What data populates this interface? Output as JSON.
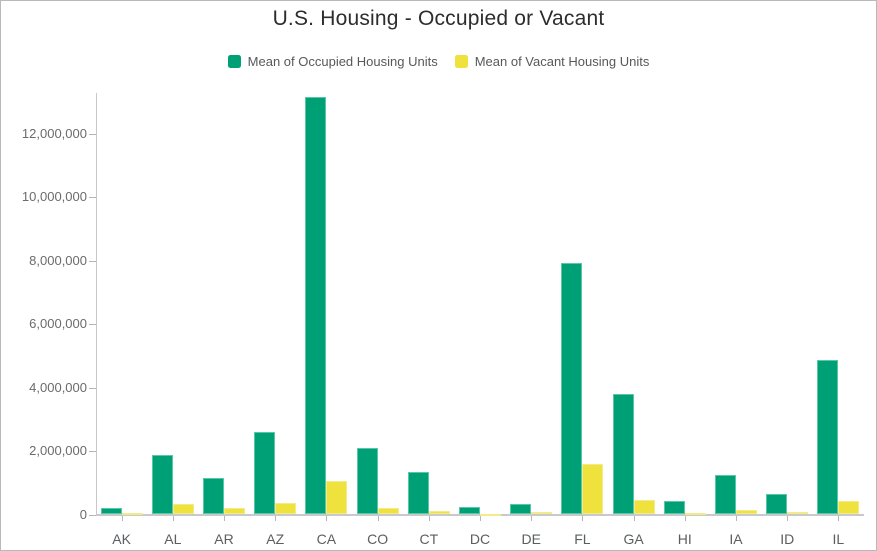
{
  "chart_data": {
    "type": "bar",
    "title": "U.S. Housing - Occupied or Vacant",
    "xlabel": "",
    "ylabel": "",
    "categories": [
      "AK",
      "AL",
      "AR",
      "AZ",
      "CA",
      "CO",
      "CT",
      "DC",
      "DE",
      "FL",
      "GA",
      "HI",
      "IA",
      "ID",
      "IL"
    ],
    "series": [
      {
        "name": "Mean of Occupied Housing Units",
        "color": "#00A076",
        "values": [
          220000,
          1860000,
          1160000,
          2600000,
          13150000,
          2090000,
          1350000,
          240000,
          340000,
          7930000,
          3800000,
          430000,
          1240000,
          640000,
          4870000
        ]
      },
      {
        "name": "Mean of Vacant Housing Units",
        "color": "#EFE23D",
        "values": [
          50000,
          330000,
          190000,
          360000,
          1060000,
          210000,
          110000,
          30000,
          70000,
          1580000,
          470000,
          60000,
          130000,
          80000,
          430000
        ]
      }
    ],
    "ylim": [
      0,
      13300000
    ],
    "ytick_interval": 2000000,
    "ytick_max": 12000000,
    "grid": false,
    "legend_position": "top"
  }
}
